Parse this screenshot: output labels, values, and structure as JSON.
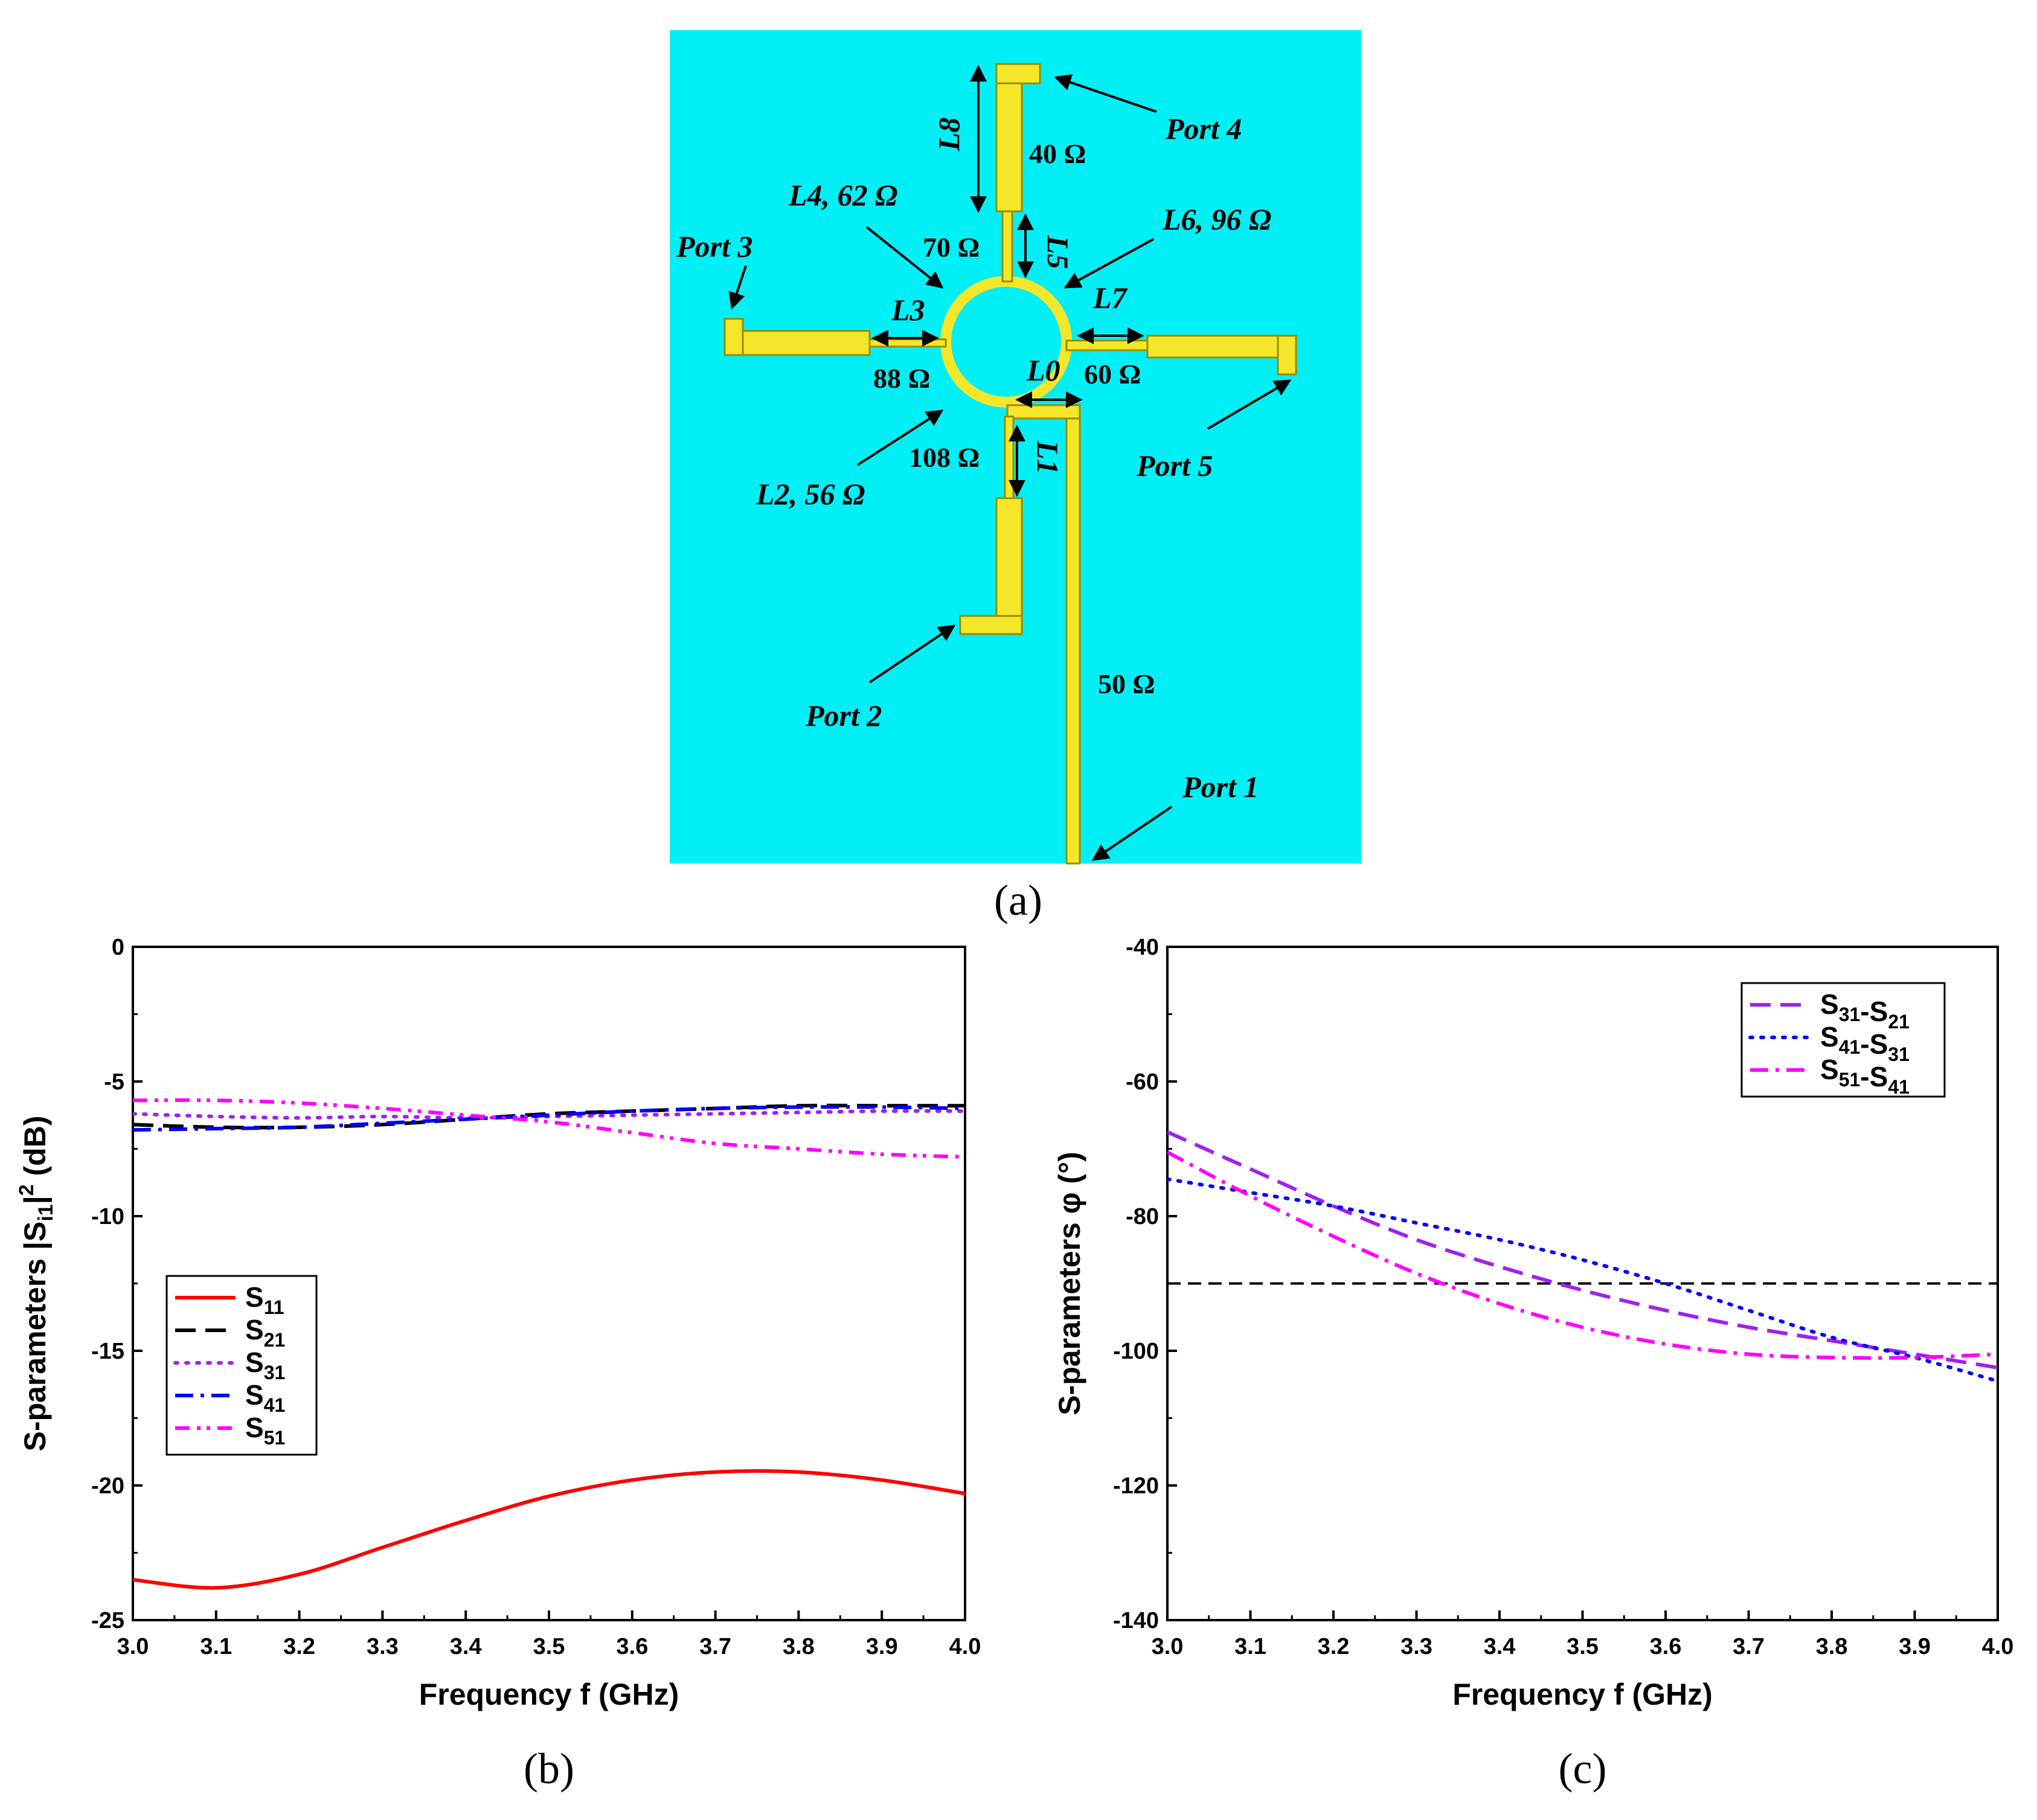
{
  "colors": {
    "substrate": "#00f0f5",
    "copper": "#f5e62a",
    "copper_edge": "#9a8d00",
    "s11": "#ff0000",
    "s21": "#000000",
    "s31": "#a020f0",
    "s41": "#0000ff",
    "s51": "#ff00ff",
    "ref": "#000000"
  },
  "diagram": {
    "caption": "(a)",
    "ports": [
      "Port 1",
      "Port 2",
      "Port 3",
      "Port 4",
      "Port 5"
    ],
    "labels": {
      "L0": "L0",
      "L1": "L1",
      "L2": "L2, 56 Ω",
      "L3": "L3",
      "L4": "L4, 62 Ω",
      "L5": "L5",
      "L6": "L6, 96 Ω",
      "L7": "L7",
      "L8": "L8"
    },
    "impedances": [
      "40 Ω",
      "70 Ω",
      "88 Ω",
      "60 Ω",
      "108 Ω",
      "50 Ω"
    ]
  },
  "chart_data": [
    {
      "id": "b",
      "caption": "(b)",
      "type": "line",
      "xlabel": "Frequency f (GHz)",
      "ylabel": "S-parameters |Si1|2 (dB)",
      "xlim": [
        3.0,
        4.0
      ],
      "ylim": [
        -25,
        0
      ],
      "xticks": [
        "3.0",
        "3.1",
        "3.2",
        "3.3",
        "3.4",
        "3.5",
        "3.6",
        "3.7",
        "3.8",
        "3.9",
        "4.0"
      ],
      "yticks": [
        "0",
        "-5",
        "-10",
        "-15",
        "-20",
        "-25"
      ],
      "legend_position": "lower-left",
      "x": [
        3.0,
        3.1,
        3.2,
        3.3,
        3.4,
        3.5,
        3.6,
        3.7,
        3.8,
        3.9,
        4.0
      ],
      "series": [
        {
          "name": "S11",
          "color": "#ff0000",
          "dash": "solid",
          "values": [
            -23.5,
            -23.8,
            -23.3,
            -22.3,
            -21.3,
            -20.4,
            -19.8,
            -19.5,
            -19.5,
            -19.8,
            -20.3
          ]
        },
        {
          "name": "S21",
          "color": "#000000",
          "dash": "dash",
          "values": [
            -6.6,
            -6.7,
            -6.7,
            -6.6,
            -6.4,
            -6.2,
            -6.1,
            -6.0,
            -5.9,
            -5.9,
            -5.9
          ]
        },
        {
          "name": "S31",
          "color": "#a020f0",
          "dash": "dot",
          "values": [
            -6.2,
            -6.3,
            -6.35,
            -6.3,
            -6.35,
            -6.3,
            -6.25,
            -6.2,
            -6.15,
            -6.1,
            -6.1
          ]
        },
        {
          "name": "S41",
          "color": "#0000ff",
          "dash": "dashdot",
          "values": [
            -6.8,
            -6.75,
            -6.7,
            -6.55,
            -6.4,
            -6.25,
            -6.1,
            -6.0,
            -5.95,
            -5.95,
            -6.0
          ]
        },
        {
          "name": "S51",
          "color": "#ff00ff",
          "dash": "dashdotdot",
          "values": [
            -5.7,
            -5.7,
            -5.8,
            -6.0,
            -6.25,
            -6.5,
            -6.9,
            -7.3,
            -7.5,
            -7.7,
            -7.8
          ]
        }
      ]
    },
    {
      "id": "c",
      "caption": "(c)",
      "type": "line",
      "xlabel": "Frequency f (GHz)",
      "ylabel": "S-parameters φ (°)",
      "xlim": [
        3.0,
        4.0
      ],
      "ylim": [
        -140,
        -40
      ],
      "xticks": [
        "3.0",
        "3.1",
        "3.2",
        "3.3",
        "3.4",
        "3.5",
        "3.6",
        "3.7",
        "3.8",
        "3.9",
        "4.0"
      ],
      "yticks": [
        "-40",
        "-60",
        "-80",
        "-100",
        "-120",
        "-140"
      ],
      "legend_position": "top-right",
      "reference_line": {
        "y": -90,
        "color": "#000000",
        "dash": "dash"
      },
      "x": [
        3.0,
        3.1,
        3.2,
        3.3,
        3.4,
        3.5,
        3.6,
        3.7,
        3.8,
        3.9,
        4.0
      ],
      "series": [
        {
          "name": "S31-S21",
          "color": "#a020f0",
          "dash": "dash",
          "values": [
            -67.5,
            -73,
            -78.5,
            -83.5,
            -87.5,
            -91,
            -94,
            -96.5,
            -98.5,
            -100.5,
            -102.5
          ]
        },
        {
          "name": "S41-S31",
          "color": "#0000ff",
          "dash": "dot",
          "values": [
            -74.5,
            -76.5,
            -78.5,
            -81,
            -83.5,
            -86.5,
            -90,
            -94,
            -98,
            -101,
            -104.5
          ]
        },
        {
          "name": "S51-S41",
          "color": "#ff00ff",
          "dash": "dashdot",
          "values": [
            -70.5,
            -77,
            -83,
            -88.5,
            -93,
            -96.5,
            -99,
            -100.5,
            -101,
            -101,
            -100.5
          ]
        }
      ]
    }
  ]
}
